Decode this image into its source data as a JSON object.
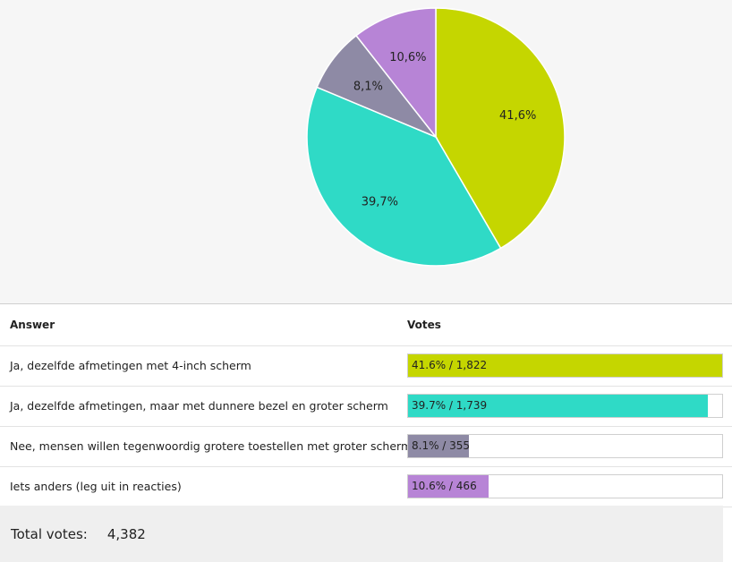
{
  "chart_data": {
    "type": "pie",
    "slices": [
      {
        "label": "Ja, dezelfde afmetingen met 4-inch scherm",
        "value": 41.6,
        "pct_label": "41,6%",
        "color": "#c5d600"
      },
      {
        "label": "Ja, dezelfde afmetingen, maar met dunnere bezel en groter scherm",
        "value": 39.7,
        "pct_label": "39,7%",
        "color": "#2fdac6"
      },
      {
        "label": "Nee, mensen willen tegenwoordig grotere toestellen met groter scherm",
        "value": 8.1,
        "pct_label": "8,1%",
        "color": "#8e8aa5"
      },
      {
        "label": "Iets anders (leg uit in reacties)",
        "value": 10.6,
        "pct_label": "10,6%",
        "color": "#b784d6"
      }
    ],
    "start_angle_deg": 0,
    "direction": "clockwise"
  },
  "table": {
    "headers": {
      "answer": "Answer",
      "votes": "Votes"
    },
    "rows": [
      {
        "answer": "Ja, dezelfde afmetingen met 4-inch scherm",
        "votes_text": "41.6% / 1,822",
        "fraction": 1.0,
        "color": "#c5d600"
      },
      {
        "answer": "Ja, dezelfde afmetingen, maar met dunnere bezel en groter scherm",
        "votes_text": "39.7% / 1,739",
        "fraction": 0.954,
        "color": "#2fdac6"
      },
      {
        "answer": "Nee, mensen willen tegenwoordig grotere toestellen met groter scherm",
        "votes_text": "8.1% / 355",
        "fraction": 0.195,
        "color": "#8e8aa5"
      },
      {
        "answer": "Iets anders (leg uit in reacties)",
        "votes_text": "10.6% / 466",
        "fraction": 0.256,
        "color": "#b784d6"
      }
    ]
  },
  "total": {
    "label": "Total votes:",
    "value": "4,382"
  }
}
